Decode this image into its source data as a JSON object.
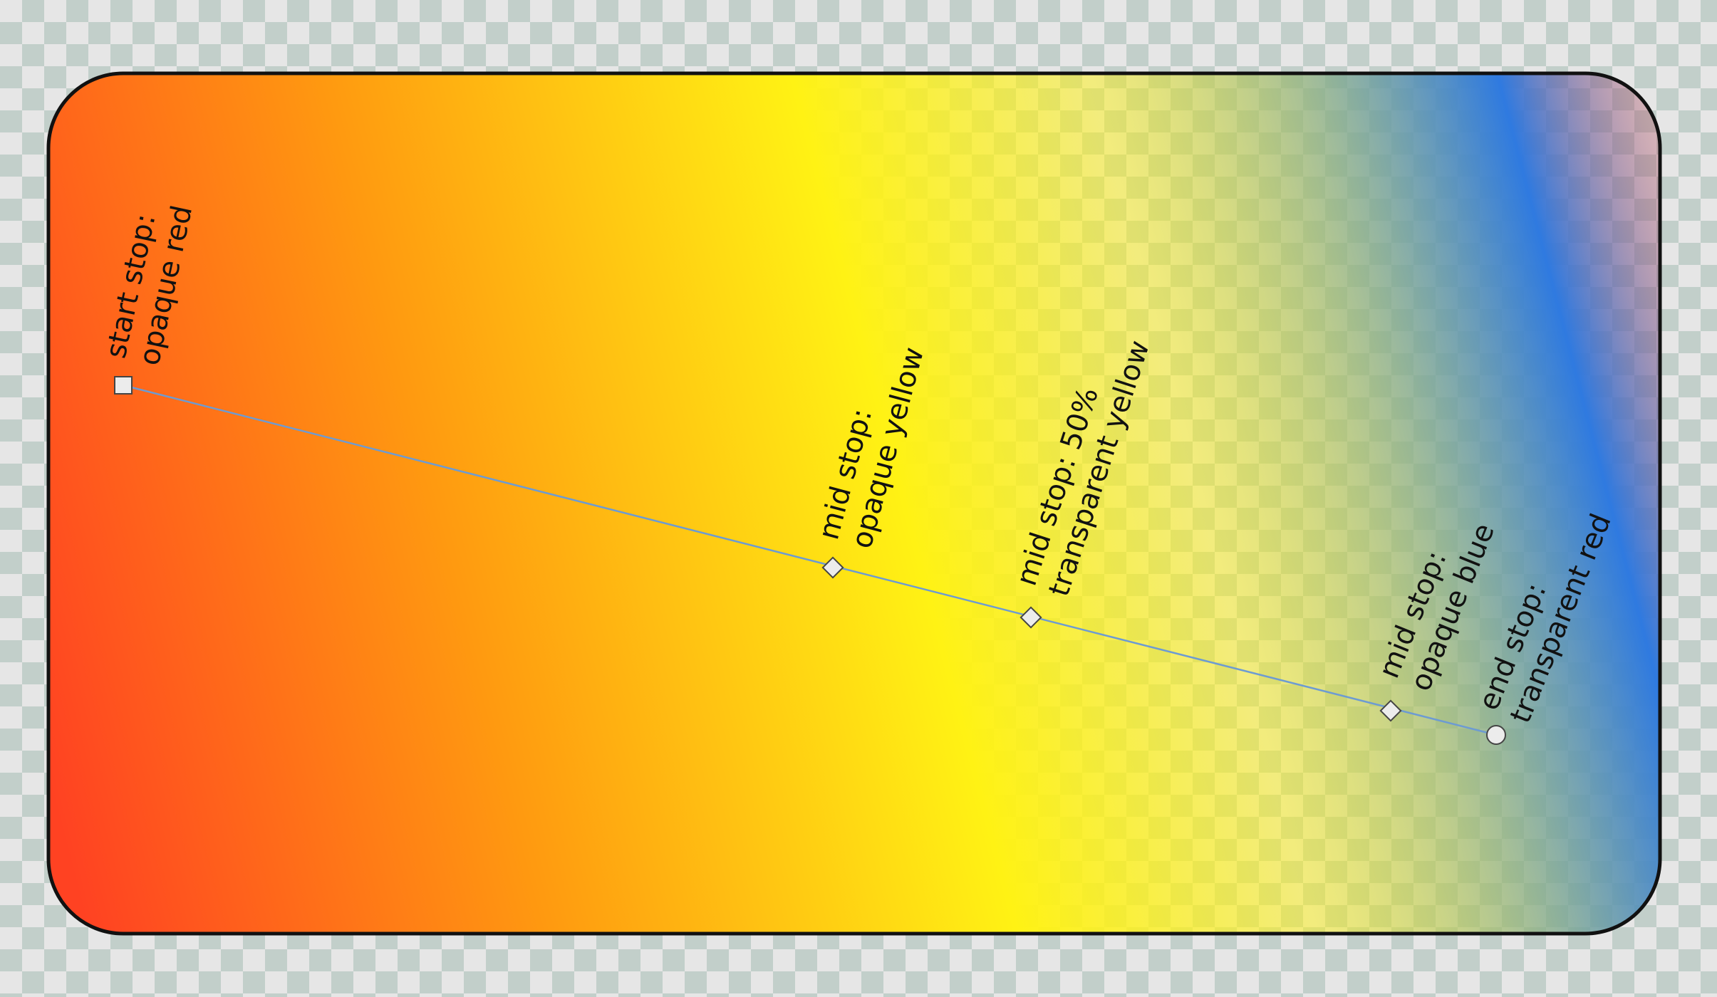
{
  "colors": {
    "opaque_red": "#ff4222",
    "orange": "#ff9a10",
    "opaque_yellow": "#fff214",
    "transparent_yellow": "rgba(255,242,20,0.5)",
    "opaque_blue": "#2f7ae0",
    "transparent_red": "rgba(255,66,34,0)",
    "gradient_line": "#6d9bd2",
    "frame_border": "#111111",
    "handle_fill": "#ececec",
    "handle_stroke": "#444444"
  },
  "gradient": {
    "stops": [
      {
        "offset": 0.0,
        "color": "#ff4222",
        "opacity": 1.0
      },
      {
        "offset": 0.25,
        "color": "#ff9a10",
        "opacity": 1.0
      },
      {
        "offset": 0.5,
        "color": "#fff214",
        "opacity": 1.0
      },
      {
        "offset": 0.66,
        "color": "#fff214",
        "opacity": 0.5
      },
      {
        "offset": 0.88,
        "color": "#2f7ae0",
        "opacity": 1.0
      },
      {
        "offset": 1.0,
        "color": "#ff4222",
        "opacity": 0.0
      }
    ]
  },
  "stops": [
    {
      "id": "start",
      "shape": "square",
      "lines": [
        "start stop:",
        "opaque red"
      ]
    },
    {
      "id": "mid1",
      "shape": "diamond",
      "lines": [
        "mid stop:",
        "opaque yellow"
      ]
    },
    {
      "id": "mid2",
      "shape": "diamond",
      "lines": [
        "mid stop: 50%",
        "transparent yellow"
      ]
    },
    {
      "id": "mid3",
      "shape": "diamond",
      "lines": [
        "mid stop:",
        "opaque blue"
      ]
    },
    {
      "id": "end",
      "shape": "circle",
      "lines": [
        "end stop:",
        "transparent red"
      ]
    }
  ]
}
